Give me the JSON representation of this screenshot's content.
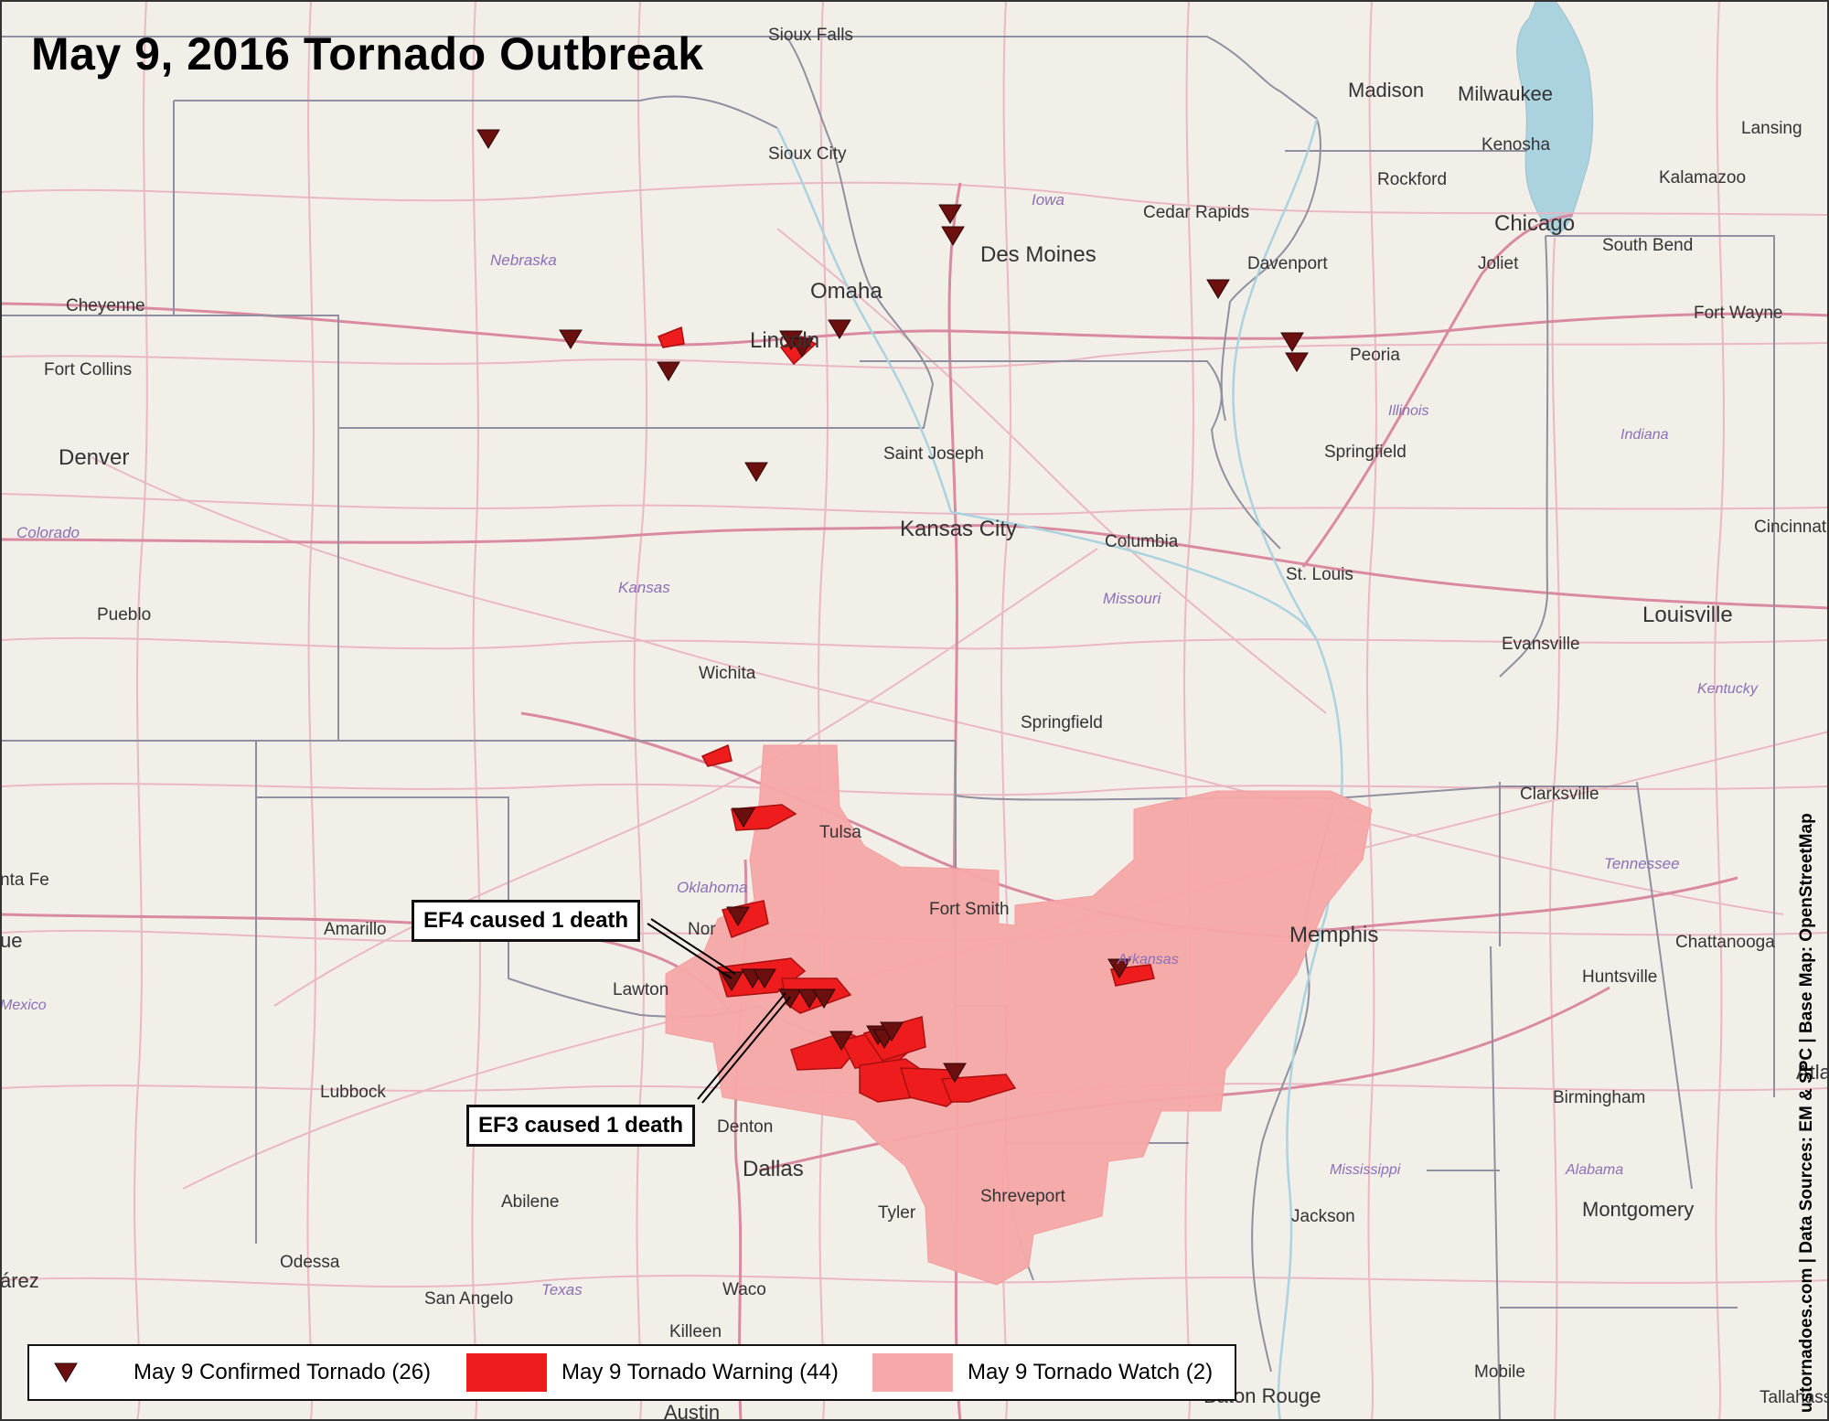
{
  "title": "May 9, 2016 Tornado Outbreak",
  "callouts": {
    "ef4": "EF4 caused 1 death",
    "ef3": "EF3 caused 1 death"
  },
  "legend": {
    "tornado": "May 9 Confirmed Tornado (26)",
    "warning": "May 9 Tornado Warning (44)",
    "watch": "May 9 Tornado Watch (2)"
  },
  "credit": "ustornadoes.com | Data Sources: EM & SPC | Base Map: OpenStreetMap",
  "colors": {
    "tornado": "#6b0f0f",
    "warning": "#ee1c1c",
    "watch": "#f7a8a8",
    "lake": "#aad3df",
    "land": "#f2efe9",
    "roads": "#e8a0b0"
  },
  "cities": {
    "sioux_falls": "Sioux Falls",
    "sioux_city": "Sioux City",
    "madison": "Madison",
    "milwaukee": "Milwaukee",
    "lansing": "Lansing",
    "kenosha": "Kenosha",
    "rockford": "Rockford",
    "kalamazoo": "Kalamazoo",
    "cedar_rapids": "Cedar Rapids",
    "chicago": "Chicago",
    "des_moines": "Des Moines",
    "davenport": "Davenport",
    "joliet": "Joliet",
    "south_bend": "South Bend",
    "cheyenne": "Cheyenne",
    "omaha": "Omaha",
    "fort_wayne": "Fort Wayne",
    "lincoln": "Lincoln",
    "fort_collins": "Fort Collins",
    "peoria": "Peoria",
    "denver": "Denver",
    "saint_joseph": "Saint Joseph",
    "springfield_il": "Springfield",
    "kansas_city": "Kansas City",
    "cincinnati": "Cincinnati",
    "columbia": "Columbia",
    "st_louis": "St. Louis",
    "pueblo": "Pueblo",
    "louisville": "Louisville",
    "evansville": "Evansville",
    "wichita": "Wichita",
    "springfield_mo": "Springfield",
    "clarksville": "Clarksville",
    "tulsa": "Tulsa",
    "santa_fe": "nta Fe",
    "fort_smith": "Fort Smith",
    "amarillo": "Amarillo",
    "norman": "Nor",
    "memphis": "Memphis",
    "chattanooga": "Chattanooga",
    "albuquerque": "ue",
    "huntsville": "Huntsville",
    "lawton": "Lawton",
    "atlanta": "Atlan",
    "lubbock": "Lubbock",
    "birmingham": "Birmingham",
    "denton": "Denton",
    "dallas": "Dallas",
    "shreveport": "Shreveport",
    "abilene": "Abilene",
    "tyler": "Tyler",
    "jackson": "Jackson",
    "montgomery": "Montgomery",
    "odessa": "Odessa",
    "juarez": "árez",
    "san_angelo": "San Angelo",
    "waco": "Waco",
    "killeen": "Killeen",
    "mobile": "Mobile",
    "baton_rouge": "Baton Rouge",
    "austin": "Austin",
    "tallahassee": "Tallahass"
  },
  "states": {
    "iowa": "Iowa",
    "nebraska": "Nebraska",
    "illinois": "Illinois",
    "indiana": "Indiana",
    "colorado": "Colorado",
    "kansas": "Kansas",
    "missouri": "Missouri",
    "kentucky": "Kentucky",
    "oklahoma": "Oklahoma",
    "tennessee": "Tennessee",
    "arkansas": "Arkansas",
    "new_mexico": "Mexico",
    "mississippi": "Mississippi",
    "alabama": "Alabama",
    "texas": "Texas"
  }
}
